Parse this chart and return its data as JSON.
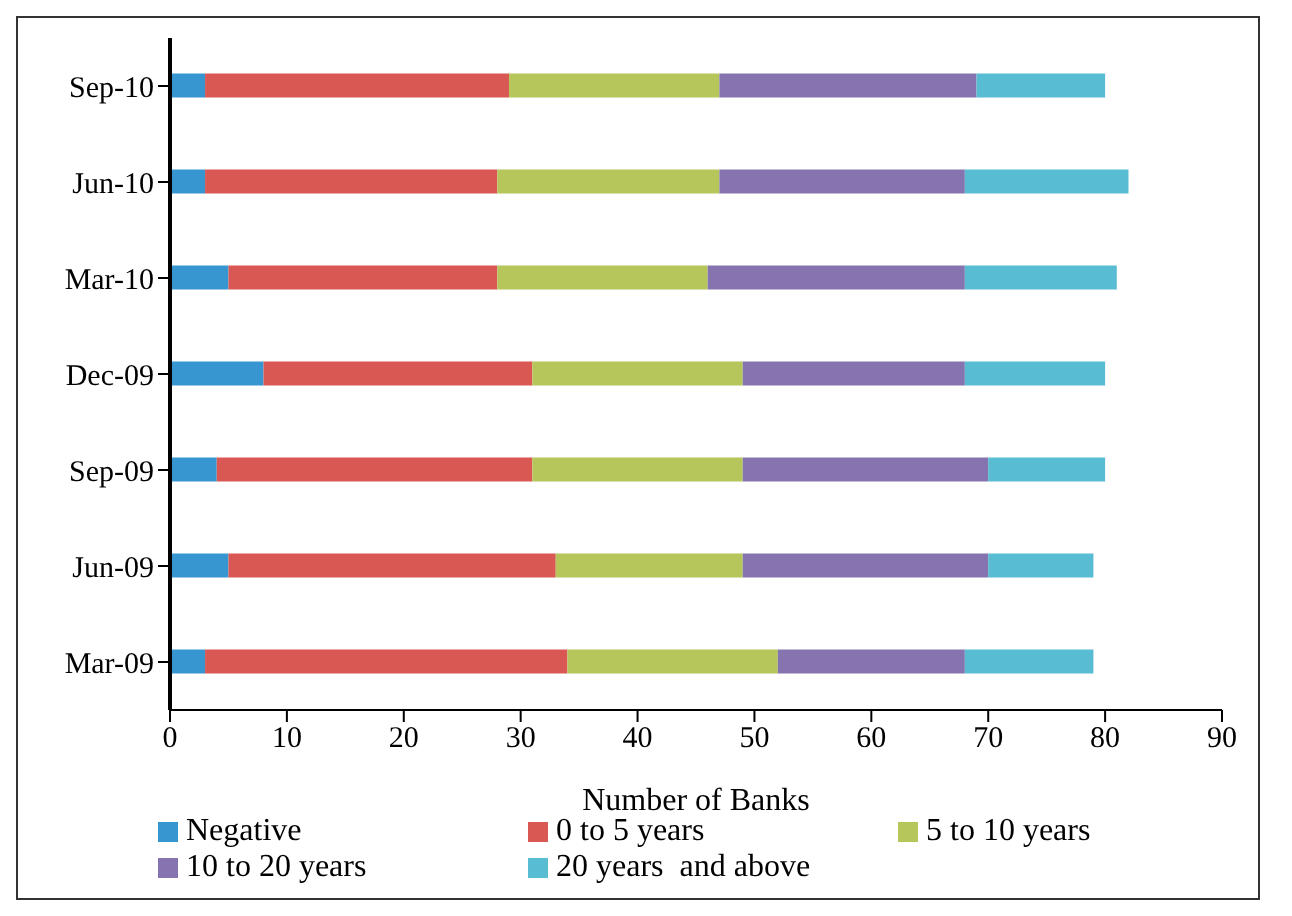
{
  "chart_data": {
    "type": "bar",
    "orientation": "horizontal",
    "stacked": true,
    "xlabel": "Number of Banks",
    "categories": [
      "Sep-10",
      "Jun-10",
      "Mar-10",
      "Dec-09",
      "Sep-09",
      "Jun-09",
      "Mar-09"
    ],
    "series": [
      {
        "name": "Negative",
        "color": "#3796cf",
        "values": [
          3,
          3,
          5,
          8,
          4,
          5,
          3
        ]
      },
      {
        "name": "0 to 5 years",
        "color": "#d95853",
        "values": [
          26,
          25,
          23,
          23,
          27,
          28,
          31
        ]
      },
      {
        "name": "5 to 10 years",
        "color": "#b6c65a",
        "values": [
          18,
          19,
          18,
          18,
          18,
          16,
          18
        ]
      },
      {
        "name": "10 to 20 years",
        "color": "#8674b0",
        "values": [
          22,
          21,
          22,
          19,
          21,
          21,
          16
        ]
      },
      {
        "name": "20 years  and above",
        "color": "#58bcd2",
        "values": [
          11,
          14,
          13,
          12,
          10,
          9,
          11
        ]
      }
    ],
    "xlim": [
      0,
      90
    ],
    "xticks": [
      0,
      10,
      20,
      30,
      40,
      50,
      60,
      70,
      80,
      90
    ],
    "legend": "bottom"
  }
}
